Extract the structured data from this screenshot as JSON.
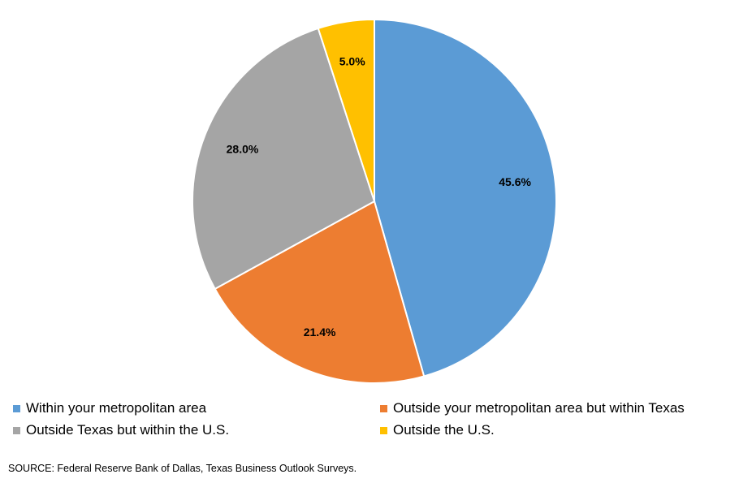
{
  "chart_data": {
    "type": "pie",
    "title": "",
    "categories": [
      "Within your metropolitan area",
      "Outside your metropolitan area but within Texas",
      "Outside Texas but within the U.S.",
      "Outside the U.S."
    ],
    "values": [
      45.6,
      21.4,
      28.0,
      5.0
    ],
    "data_labels": [
      "45.6%",
      "21.4%",
      "28.0%",
      "5.0%"
    ],
    "colors": [
      "#5B9BD5",
      "#ED7D31",
      "#A5A5A5",
      "#FFC000"
    ],
    "start_angle": "12 o'clock",
    "direction": "clockwise",
    "legend_position": "bottom"
  },
  "legend": {
    "items": [
      {
        "label": "Within your metropolitan area",
        "color": "#5B9BD5"
      },
      {
        "label": "Outside your metropolitan area but within Texas",
        "color": "#ED7D31"
      },
      {
        "label": "Outside Texas but within the U.S.",
        "color": "#A5A5A5"
      },
      {
        "label": "Outside the U.S.",
        "color": "#FFC000"
      }
    ]
  },
  "source": "SOURCE: Federal Reserve Bank of Dallas, Texas Business Outlook Surveys."
}
